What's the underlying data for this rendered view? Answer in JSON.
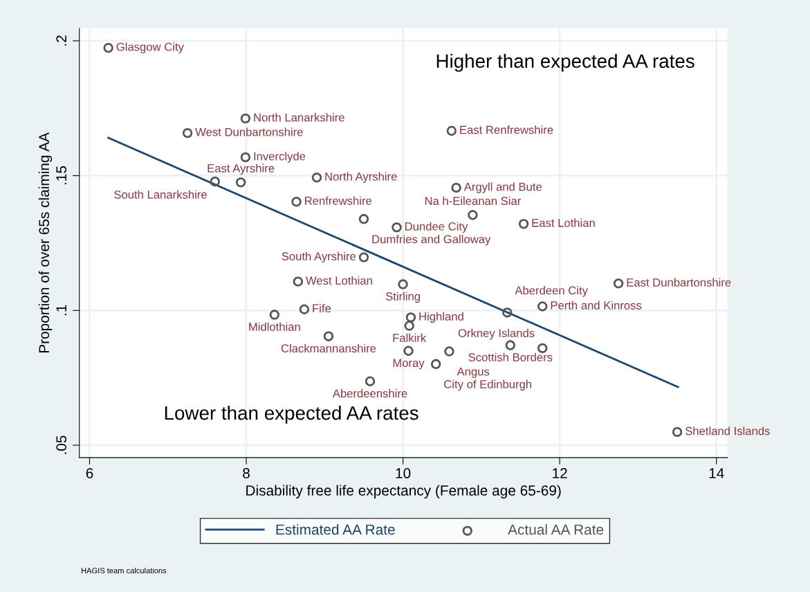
{
  "chart_data": {
    "type": "scatter",
    "xlabel": "Disability free life expectancy (Female age 65-69)",
    "ylabel": "Proportion of over 65s claiming AA",
    "xlim": [
      5.87,
      14.14
    ],
    "ylim": [
      0.0454,
      0.2046
    ],
    "xticks": [
      6,
      8,
      10,
      12,
      14
    ],
    "yticks": [
      {
        "value": 0.05,
        "label": ".05"
      },
      {
        "value": 0.1,
        "label": ".1"
      },
      {
        "value": 0.15,
        "label": ".15"
      },
      {
        "value": 0.2,
        "label": ".2"
      }
    ],
    "grid": true,
    "legend": "bottom",
    "series": [
      {
        "name": "Estimated AA Rate",
        "type": "line",
        "color": "#1a476f",
        "marker": "none",
        "line_style": "solid",
        "x": [
          6.24,
          13.51
        ],
        "values": [
          0.164,
          0.0716
        ]
      },
      {
        "name": "Actual AA Rate",
        "color": "#555555",
        "marker": "circle",
        "x": [
          6.24,
          7.99,
          7.25,
          10.62,
          7.99,
          7.6,
          7.93,
          8.9,
          10.68,
          8.64,
          9.5,
          9.92,
          10.89,
          11.54,
          9.5,
          8.66,
          10.0,
          12.75,
          8.74,
          8.36,
          10.1,
          10.08,
          11.78,
          11.33,
          9.05,
          11.37,
          11.78,
          10.07,
          10.59,
          10.42,
          9.58,
          13.5
        ],
        "values": [
          0.1974,
          0.1712,
          0.1658,
          0.1666,
          0.1568,
          0.1478,
          0.1475,
          0.1493,
          0.1455,
          0.1403,
          0.1339,
          0.1308,
          0.1354,
          0.1321,
          0.1197,
          0.1107,
          0.1097,
          0.11,
          0.1004,
          0.0984,
          0.0974,
          0.0943,
          0.1015,
          0.0992,
          0.0904,
          0.0871,
          0.086,
          0.085,
          0.0848,
          0.0801,
          0.0737,
          0.0549
        ]
      }
    ],
    "annotations": [
      "Higher than expected AA rates",
      "Lower than expected AA rates",
      "HAGIS team calculations",
      {
        "text": "Glasgow City",
        "x": 6.24,
        "y": 0.1974
      },
      {
        "text": "North Lanarkshire",
        "x": 7.99,
        "y": 0.1712
      },
      {
        "text": "West Dunbartonshire",
        "x": 7.25,
        "y": 0.1658
      },
      {
        "text": "East Renfrewshire",
        "x": 10.62,
        "y": 0.1666
      },
      {
        "text": "Inverclyde",
        "x": 7.99,
        "y": 0.1568
      },
      {
        "text": "South Lanarkshire",
        "x": 7.6,
        "y": 0.1478
      },
      {
        "text": "East Ayrshire",
        "x": 7.93,
        "y": 0.1475
      },
      {
        "text": "North Ayrshire",
        "x": 8.9,
        "y": 0.1493
      },
      {
        "text": "Argyll and Bute",
        "x": 10.68,
        "y": 0.1455
      },
      {
        "text": "Renfrewshire",
        "x": 8.64,
        "y": 0.1403
      },
      {
        "text": "Dumfries and Galloway",
        "x": 9.5,
        "y": 0.1339
      },
      {
        "text": "Dundee City",
        "x": 9.92,
        "y": 0.1308
      },
      {
        "text": "Na h-Eileanan Siar",
        "x": 10.89,
        "y": 0.1354
      },
      {
        "text": "East Lothian",
        "x": 11.54,
        "y": 0.1321
      },
      {
        "text": "South Ayrshire",
        "x": 9.5,
        "y": 0.1197
      },
      {
        "text": "West Lothian",
        "x": 8.66,
        "y": 0.1107
      },
      {
        "text": "Stirling",
        "x": 10.0,
        "y": 0.1097
      },
      {
        "text": "East Dunbartonshire",
        "x": 12.75,
        "y": 0.11
      },
      {
        "text": "Fife",
        "x": 8.74,
        "y": 0.1004
      },
      {
        "text": "Midlothian",
        "x": 8.36,
        "y": 0.0984
      },
      {
        "text": "Highland",
        "x": 10.1,
        "y": 0.0974
      },
      {
        "text": "Falkirk",
        "x": 10.08,
        "y": 0.0943
      },
      {
        "text": "Perth and Kinross",
        "x": 11.78,
        "y": 0.1015
      },
      {
        "text": "Aberdeen City",
        "x": 11.33,
        "y": 0.0992
      },
      {
        "text": "Clackmannanshire",
        "x": 9.05,
        "y": 0.0904
      },
      {
        "text": "Scottish Borders",
        "x": 11.37,
        "y": 0.0871
      },
      {
        "text": "Orkney Islands",
        "x": 11.78,
        "y": 0.086
      },
      {
        "text": "Moray",
        "x": 10.07,
        "y": 0.085
      },
      {
        "text": "Angus",
        "x": 10.59,
        "y": 0.0848
      },
      {
        "text": "City of Edinburgh",
        "x": 10.42,
        "y": 0.0801
      },
      {
        "text": "Aberdeenshire",
        "x": 9.58,
        "y": 0.0737
      },
      {
        "text": "Shetland Islands",
        "x": 13.5,
        "y": 0.0549
      }
    ]
  }
}
